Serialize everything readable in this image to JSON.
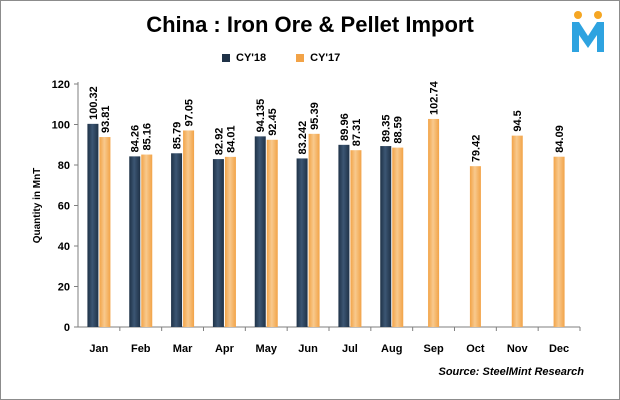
{
  "title": "China : Iron Ore & Pellet Import",
  "source": "Source: SteelMint Research",
  "logo": {
    "icon": "steelmint-m-logo",
    "colors": [
      "#f5a623",
      "#2ea3e0"
    ]
  },
  "colors": {
    "cy18": "#1f3247",
    "cy18_light": "#3c5673",
    "cy17": "#f2a347",
    "cy17_light": "#f8c98d",
    "grid": "#c0c0c0",
    "axis": "#7f7f7f"
  },
  "chart_data": {
    "type": "bar",
    "title": "China : Iron Ore & Pellet Import",
    "xlabel": "",
    "ylabel": "Quantity in MnT",
    "ylim": [
      0,
      120
    ],
    "yticks": [
      "0",
      "20",
      "40",
      "60",
      "80",
      "100",
      "120"
    ],
    "grid": false,
    "legend_position": "top",
    "categories": [
      "Jan",
      "Feb",
      "Mar",
      "Apr",
      "May",
      "Jun",
      "Jul",
      "Aug",
      "Sep",
      "Oct",
      "Nov",
      "Dec"
    ],
    "series": [
      {
        "name": "CY'18",
        "values": [
          100.32,
          84.26,
          85.79,
          82.92,
          94.135,
          83.242,
          89.96,
          89.35,
          null,
          null,
          null,
          null
        ],
        "labels": [
          "100.32",
          "84.26",
          "85.79",
          "82.92",
          "94.135",
          "83.242",
          "89.96",
          "89.35",
          null,
          null,
          null,
          null
        ]
      },
      {
        "name": "CY'17",
        "values": [
          93.81,
          85.16,
          97.05,
          84.01,
          92.45,
          95.39,
          87.31,
          88.59,
          102.74,
          79.42,
          94.5,
          84.09
        ],
        "labels": [
          "93.81",
          "85.16",
          "97.05",
          "84.01",
          "92.45",
          "95.39",
          "87.31",
          "88.59",
          "102.74",
          "79.42",
          "94.5",
          "84.09"
        ]
      }
    ]
  }
}
